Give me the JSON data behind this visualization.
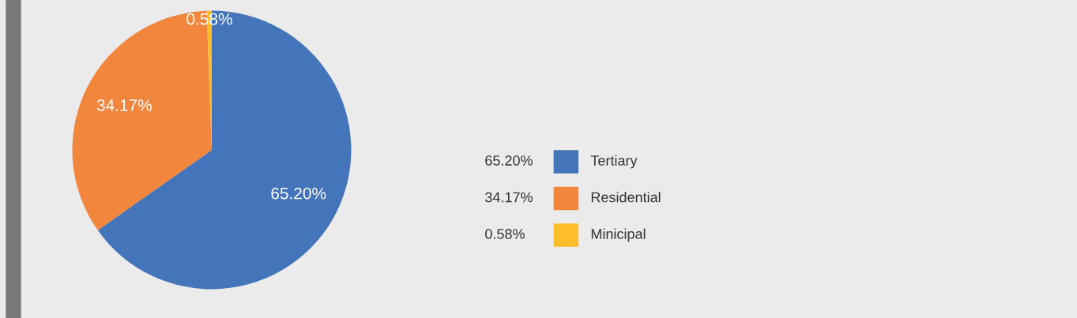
{
  "chart_data": {
    "type": "pie",
    "categories": [
      "Tertiary",
      "Residential",
      "Minicipal"
    ],
    "values": [
      65.2,
      34.17,
      0.58
    ],
    "value_labels": [
      "65.20%",
      "34.17%",
      "0.58%"
    ],
    "colors": [
      "#4474b9",
      "#f3863d",
      "#fdbd2c"
    ],
    "legend": "right"
  }
}
